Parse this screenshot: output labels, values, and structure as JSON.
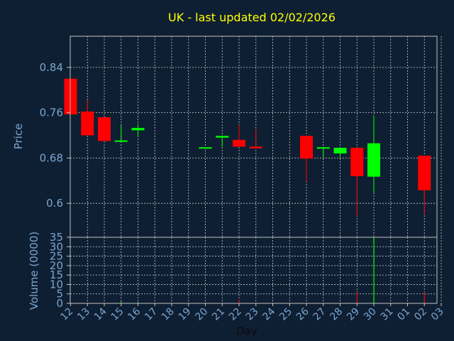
{
  "title": "UK - last updated 02/02/2026",
  "colors": {
    "background": "#0f1f33",
    "title": "#ffff00",
    "axis_text": "#7aa5cf",
    "frame": "#c0c0c0",
    "up": "#00ff00",
    "down": "#ff0000"
  },
  "chart_data": [
    {
      "type": "candlestick",
      "ylabel": "Price",
      "ylim": [
        0.54,
        0.895
      ],
      "yticks": [
        0.6,
        0.68,
        0.76,
        0.84
      ],
      "yticklabels": [
        "0.6",
        "0.68",
        "0.76",
        "0.84"
      ],
      "grid": true,
      "candles": [
        {
          "day": "12",
          "open": 0.82,
          "high": 0.82,
          "low": 0.757,
          "close": 0.757
        },
        {
          "day": "13",
          "open": 0.762,
          "high": 0.782,
          "low": 0.72,
          "close": 0.72
        },
        {
          "day": "14",
          "open": 0.752,
          "high": 0.752,
          "low": 0.71,
          "close": 0.71
        },
        {
          "day": "15",
          "open": 0.709,
          "high": 0.74,
          "low": 0.709,
          "close": 0.711
        },
        {
          "day": "16",
          "open": 0.729,
          "high": 0.74,
          "low": 0.718,
          "close": 0.733
        },
        {
          "day": "20",
          "open": 0.697,
          "high": 0.699,
          "low": 0.697,
          "close": 0.699
        },
        {
          "day": "21",
          "open": 0.716,
          "high": 0.719,
          "low": 0.7,
          "close": 0.719
        },
        {
          "day": "22",
          "open": 0.712,
          "high": 0.738,
          "low": 0.7,
          "close": 0.7
        },
        {
          "day": "23",
          "open": 0.7,
          "high": 0.73,
          "low": 0.697,
          "close": 0.697
        },
        {
          "day": "26",
          "open": 0.719,
          "high": 0.719,
          "low": 0.638,
          "close": 0.679
        },
        {
          "day": "27",
          "open": 0.697,
          "high": 0.7,
          "low": 0.68,
          "close": 0.699
        },
        {
          "day": "28",
          "open": 0.688,
          "high": 0.699,
          "low": 0.68,
          "close": 0.698
        },
        {
          "day": "29",
          "open": 0.698,
          "high": 0.698,
          "low": 0.578,
          "close": 0.648
        },
        {
          "day": "30",
          "open": 0.647,
          "high": 0.755,
          "low": 0.619,
          "close": 0.706
        },
        {
          "day": "02",
          "open": 0.684,
          "high": 0.684,
          "low": 0.58,
          "close": 0.623
        }
      ]
    },
    {
      "type": "bar",
      "xlabel": "Day",
      "ylabel": "Volume (0000)",
      "ylim": [
        0,
        35
      ],
      "yticks": [
        0,
        5,
        10,
        15,
        20,
        25,
        30,
        35
      ],
      "yticklabels": [
        "0",
        "5",
        "10",
        "15",
        "20",
        "25",
        "30",
        "35"
      ],
      "grid": true,
      "categories": [
        "12",
        "13",
        "14",
        "15",
        "16",
        "17",
        "18",
        "19",
        "20",
        "21",
        "22",
        "23",
        "24",
        "25",
        "26",
        "27",
        "28",
        "29",
        "30",
        "31",
        "01",
        "02",
        "03"
      ],
      "values": [
        0.3,
        0.5,
        0.3,
        1.0,
        0.8,
        0,
        0,
        0,
        0.2,
        0.2,
        1.8,
        0.3,
        0,
        0,
        0.3,
        0.2,
        0.2,
        6.0,
        35.0,
        0,
        0,
        6.0,
        0
      ],
      "bar_colors": [
        "#ff0000",
        "#ff0000",
        "#ff0000",
        "#00ff00",
        "#00ff00",
        "",
        "",
        "",
        "#00ff00",
        "#00ff00",
        "#ff0000",
        "#ff0000",
        "",
        "",
        "#ff0000",
        "#00ff00",
        "#ff0000",
        "#ff0000",
        "#00ff00",
        "",
        "",
        "#ff0000",
        ""
      ]
    }
  ]
}
